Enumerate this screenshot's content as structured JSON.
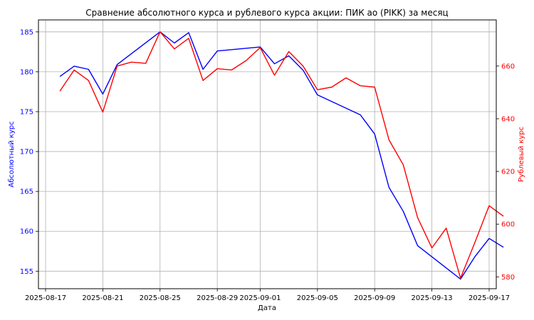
{
  "chart_data": {
    "type": "line",
    "title": "Сравнение абсолютного курса и рублевого курса акции: ПИК ао (PIKK) за месяц",
    "xlabel": "Дата",
    "ylabel_left": "Абсолютный курс",
    "ylabel_right": "Рублевый курс",
    "grid": true,
    "x_ticks": [
      "2025-08-17",
      "2025-08-21",
      "2025-08-25",
      "2025-08-29",
      "2025-09-01",
      "2025-09-05",
      "2025-09-09",
      "2025-09-13",
      "2025-09-17"
    ],
    "y_left_ticks": [
      155,
      160,
      165,
      170,
      175,
      180,
      185
    ],
    "y_right_ticks": [
      580,
      600,
      620,
      640,
      660
    ],
    "y_left_lim": [
      152.8,
      186.5
    ],
    "y_right_lim": [
      575.5,
      677.5
    ],
    "series": [
      {
        "axis": "left",
        "color": "#0000ff",
        "points": [
          [
            "2025-08-18",
            179.4
          ],
          [
            "2025-08-19",
            180.7
          ],
          [
            "2025-08-20",
            180.3
          ],
          [
            "2025-08-21",
            177.2
          ],
          [
            "2025-08-22",
            180.9
          ],
          [
            "2025-08-25",
            185.0
          ],
          [
            "2025-08-26",
            183.6
          ],
          [
            "2025-08-27",
            184.9
          ],
          [
            "2025-08-28",
            180.3
          ],
          [
            "2025-08-29",
            182.6
          ],
          [
            "2025-09-01",
            183.1
          ],
          [
            "2025-09-02",
            181.0
          ],
          [
            "2025-09-03",
            182.0
          ],
          [
            "2025-09-04",
            180.2
          ],
          [
            "2025-09-05",
            177.1
          ],
          [
            "2025-09-08",
            174.6
          ],
          [
            "2025-09-09",
            172.2
          ],
          [
            "2025-09-10",
            165.5
          ],
          [
            "2025-09-11",
            162.5
          ],
          [
            "2025-09-12",
            158.2
          ],
          [
            "2025-09-15",
            154.0
          ],
          [
            "2025-09-16",
            156.8
          ],
          [
            "2025-09-17",
            159.1
          ],
          [
            "2025-09-18",
            158.0
          ]
        ]
      },
      {
        "axis": "right",
        "color": "#ff0000",
        "points": [
          [
            "2025-08-18",
            650.5
          ],
          [
            "2025-08-19",
            658.5
          ],
          [
            "2025-08-20",
            654.5
          ],
          [
            "2025-08-21",
            642.5
          ],
          [
            "2025-08-22",
            660.0
          ],
          [
            "2025-08-23",
            661.5
          ],
          [
            "2025-08-24",
            661.0
          ],
          [
            "2025-08-25",
            673.0
          ],
          [
            "2025-08-26",
            666.5
          ],
          [
            "2025-08-27",
            670.5
          ],
          [
            "2025-08-28",
            654.5
          ],
          [
            "2025-08-29",
            659.0
          ],
          [
            "2025-08-30",
            658.5
          ],
          [
            "2025-08-31",
            662.0
          ],
          [
            "2025-09-01",
            667.0
          ],
          [
            "2025-09-02",
            656.5
          ],
          [
            "2025-09-03",
            665.5
          ],
          [
            "2025-09-04",
            660.0
          ],
          [
            "2025-09-05",
            651.0
          ],
          [
            "2025-09-06",
            652.0
          ],
          [
            "2025-09-07",
            655.5
          ],
          [
            "2025-09-08",
            652.5
          ],
          [
            "2025-09-09",
            652.0
          ],
          [
            "2025-09-10",
            632.0
          ],
          [
            "2025-09-11",
            622.5
          ],
          [
            "2025-09-12",
            602.5
          ],
          [
            "2025-09-13",
            591.0
          ],
          [
            "2025-09-14",
            598.5
          ],
          [
            "2025-09-15",
            579.5
          ],
          [
            "2025-09-16",
            593.0
          ],
          [
            "2025-09-17",
            607.0
          ],
          [
            "2025-09-18",
            603.0
          ]
        ]
      }
    ]
  }
}
